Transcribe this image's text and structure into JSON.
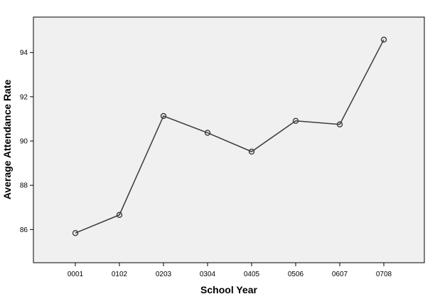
{
  "chart_data": {
    "type": "line",
    "title": "",
    "xlabel": "School Year",
    "ylabel": "Average Attendance Rate",
    "categories": [
      "0001",
      "0102",
      "0203",
      "0304",
      "0405",
      "0506",
      "0607",
      "0708"
    ],
    "series": [
      {
        "values": [
          85.84,
          86.66,
          91.13,
          90.37,
          89.52,
          90.91,
          90.75,
          94.58
        ]
      }
    ],
    "ylim": [
      84.5,
      95.6
    ],
    "yticks": [
      86,
      88,
      90,
      92,
      94
    ],
    "grid": false,
    "legend": "none",
    "marker": "open-circle",
    "colors": {
      "line": "#3a3a3a",
      "marker": "#3a3a3a",
      "plot_background": "#f0f0f0",
      "frame": "#000000"
    }
  }
}
